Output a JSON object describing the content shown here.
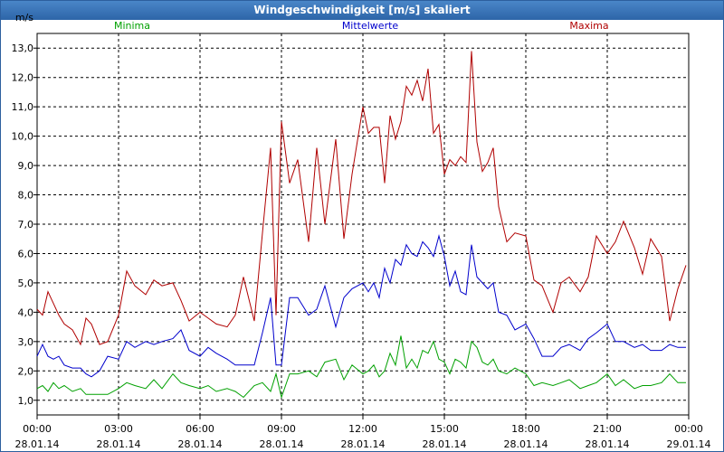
{
  "window": {
    "title": "Windgeschwindigkeit [m/s] skaliert"
  },
  "chart_data": {
    "type": "line",
    "title": "Windgeschwindigkeit [m/s] skaliert",
    "ylabel": "m/s",
    "ylim": [
      0.5,
      13.5
    ],
    "yticks": [
      "1,0",
      "2,0",
      "3,0",
      "4,0",
      "5,0",
      "6,0",
      "7,0",
      "8,0",
      "9,0",
      "10,0",
      "11,0",
      "12,0",
      "13,0"
    ],
    "xlim": [
      0,
      24
    ],
    "xticks": [
      {
        "time": "00:00",
        "date": "28.01.14"
      },
      {
        "time": "03:00",
        "date": "28.01.14"
      },
      {
        "time": "06:00",
        "date": "28.01.14"
      },
      {
        "time": "09:00",
        "date": "28.01.14"
      },
      {
        "time": "12:00",
        "date": "28.01.14"
      },
      {
        "time": "15:00",
        "date": "28.01.14"
      },
      {
        "time": "18:00",
        "date": "28.01.14"
      },
      {
        "time": "21:00",
        "date": "28.01.14"
      },
      {
        "time": "00:00",
        "date": "29.01.14"
      }
    ],
    "grid": true,
    "x_unit": "hours since 28.01.14 00:00",
    "series": [
      {
        "name": "Minima",
        "color": "#00a000",
        "x": [
          0.0,
          0.2,
          0.4,
          0.6,
          0.8,
          1.0,
          1.3,
          1.6,
          1.8,
          2.0,
          2.3,
          2.6,
          3.0,
          3.3,
          3.6,
          4.0,
          4.3,
          4.6,
          5.0,
          5.3,
          5.6,
          6.0,
          6.3,
          6.6,
          7.0,
          7.3,
          7.6,
          8.0,
          8.3,
          8.6,
          8.8,
          9.0,
          9.3,
          9.6,
          10.0,
          10.3,
          10.6,
          11.0,
          11.3,
          11.6,
          12.0,
          12.2,
          12.4,
          12.6,
          12.8,
          13.0,
          13.2,
          13.4,
          13.6,
          13.8,
          14.0,
          14.2,
          14.4,
          14.6,
          14.8,
          15.0,
          15.2,
          15.4,
          15.6,
          15.8,
          16.0,
          16.2,
          16.4,
          16.6,
          16.8,
          17.0,
          17.3,
          17.6,
          18.0,
          18.3,
          18.6,
          19.0,
          19.3,
          19.6,
          20.0,
          20.3,
          20.6,
          21.0,
          21.3,
          21.6,
          22.0,
          22.3,
          22.6,
          23.0,
          23.3,
          23.6,
          23.9
        ],
        "values": [
          1.4,
          1.5,
          1.3,
          1.6,
          1.4,
          1.5,
          1.3,
          1.4,
          1.2,
          1.2,
          1.2,
          1.2,
          1.4,
          1.6,
          1.5,
          1.4,
          1.7,
          1.4,
          1.9,
          1.6,
          1.5,
          1.4,
          1.5,
          1.3,
          1.4,
          1.3,
          1.1,
          1.5,
          1.6,
          1.3,
          1.9,
          1.1,
          1.9,
          1.9,
          2.0,
          1.8,
          2.3,
          2.4,
          1.7,
          2.2,
          1.9,
          2.0,
          2.2,
          1.8,
          2.0,
          2.6,
          2.2,
          3.2,
          2.1,
          2.4,
          2.1,
          2.7,
          2.6,
          3.0,
          2.4,
          2.3,
          1.9,
          2.4,
          2.3,
          2.1,
          3.0,
          2.8,
          2.3,
          2.2,
          2.4,
          2.0,
          1.9,
          2.1,
          1.9,
          1.5,
          1.6,
          1.5,
          1.6,
          1.7,
          1.4,
          1.5,
          1.6,
          1.9,
          1.5,
          1.7,
          1.4,
          1.5,
          1.5,
          1.6,
          1.9,
          1.6,
          1.6
        ]
      },
      {
        "name": "Mittelwerte",
        "color": "#0000cc",
        "x": [
          0.0,
          0.2,
          0.4,
          0.6,
          0.8,
          1.0,
          1.3,
          1.6,
          1.8,
          2.0,
          2.3,
          2.6,
          3.0,
          3.3,
          3.6,
          4.0,
          4.3,
          4.6,
          5.0,
          5.3,
          5.6,
          6.0,
          6.3,
          6.6,
          7.0,
          7.3,
          7.6,
          8.0,
          8.3,
          8.6,
          8.8,
          9.0,
          9.3,
          9.6,
          10.0,
          10.3,
          10.6,
          11.0,
          11.3,
          11.6,
          12.0,
          12.2,
          12.4,
          12.6,
          12.8,
          13.0,
          13.2,
          13.4,
          13.6,
          13.8,
          14.0,
          14.2,
          14.4,
          14.6,
          14.8,
          15.0,
          15.2,
          15.4,
          15.6,
          15.8,
          16.0,
          16.2,
          16.4,
          16.6,
          16.8,
          17.0,
          17.3,
          17.6,
          18.0,
          18.3,
          18.6,
          19.0,
          19.3,
          19.6,
          20.0,
          20.3,
          20.6,
          21.0,
          21.3,
          21.6,
          22.0,
          22.3,
          22.6,
          23.0,
          23.3,
          23.6,
          23.9
        ],
        "values": [
          2.5,
          2.9,
          2.5,
          2.4,
          2.5,
          2.2,
          2.1,
          2.1,
          1.9,
          1.8,
          2.0,
          2.5,
          2.4,
          3.0,
          2.8,
          3.0,
          2.9,
          3.0,
          3.1,
          3.4,
          2.7,
          2.5,
          2.8,
          2.6,
          2.4,
          2.2,
          2.2,
          2.2,
          3.3,
          4.5,
          2.2,
          2.2,
          4.5,
          4.5,
          3.9,
          4.1,
          4.9,
          3.5,
          4.5,
          4.8,
          5.0,
          4.7,
          5.0,
          4.5,
          5.5,
          5.0,
          5.8,
          5.6,
          6.3,
          6.0,
          5.9,
          6.4,
          6.2,
          5.9,
          6.6,
          5.9,
          4.9,
          5.4,
          4.7,
          4.6,
          6.3,
          5.2,
          5.0,
          4.8,
          5.0,
          4.0,
          3.9,
          3.4,
          3.6,
          3.1,
          2.5,
          2.5,
          2.8,
          2.9,
          2.7,
          3.1,
          3.3,
          3.6,
          3.0,
          3.0,
          2.8,
          2.9,
          2.7,
          2.7,
          2.9,
          2.8,
          2.8
        ]
      },
      {
        "name": "Maxima",
        "color": "#b00000",
        "x": [
          0.0,
          0.2,
          0.4,
          0.6,
          0.8,
          1.0,
          1.3,
          1.6,
          1.8,
          2.0,
          2.3,
          2.6,
          3.0,
          3.3,
          3.6,
          4.0,
          4.3,
          4.6,
          5.0,
          5.3,
          5.6,
          6.0,
          6.3,
          6.6,
          7.0,
          7.3,
          7.6,
          8.0,
          8.3,
          8.6,
          8.8,
          9.0,
          9.3,
          9.6,
          10.0,
          10.3,
          10.6,
          11.0,
          11.3,
          11.6,
          12.0,
          12.2,
          12.4,
          12.6,
          12.8,
          13.0,
          13.2,
          13.4,
          13.6,
          13.8,
          14.0,
          14.2,
          14.4,
          14.6,
          14.8,
          15.0,
          15.2,
          15.4,
          15.6,
          15.8,
          16.0,
          16.2,
          16.4,
          16.6,
          16.8,
          17.0,
          17.3,
          17.6,
          18.0,
          18.3,
          18.6,
          19.0,
          19.3,
          19.6,
          20.0,
          20.3,
          20.6,
          21.0,
          21.3,
          21.6,
          22.0,
          22.3,
          22.6,
          23.0,
          23.3,
          23.6,
          23.9
        ],
        "values": [
          4.1,
          3.9,
          4.7,
          4.3,
          3.9,
          3.6,
          3.4,
          2.9,
          3.8,
          3.6,
          2.9,
          3.0,
          3.9,
          5.4,
          4.9,
          4.6,
          5.1,
          4.9,
          5.0,
          4.4,
          3.7,
          4.0,
          3.8,
          3.6,
          3.5,
          3.9,
          5.2,
          3.7,
          6.7,
          9.6,
          3.9,
          10.5,
          8.4,
          9.2,
          6.4,
          9.6,
          7.0,
          9.9,
          6.5,
          8.7,
          11.0,
          10.1,
          10.3,
          10.3,
          8.4,
          10.7,
          9.9,
          10.5,
          11.7,
          11.4,
          11.9,
          11.2,
          12.3,
          10.1,
          10.4,
          8.7,
          9.2,
          9.0,
          9.3,
          9.1,
          12.9,
          9.8,
          8.8,
          9.1,
          9.6,
          7.6,
          6.4,
          6.7,
          6.6,
          5.1,
          4.9,
          4.0,
          5.0,
          5.2,
          4.7,
          5.2,
          6.6,
          6.0,
          6.4,
          7.1,
          6.2,
          5.3,
          6.5,
          5.9,
          3.7,
          4.8,
          5.6
        ]
      }
    ]
  }
}
